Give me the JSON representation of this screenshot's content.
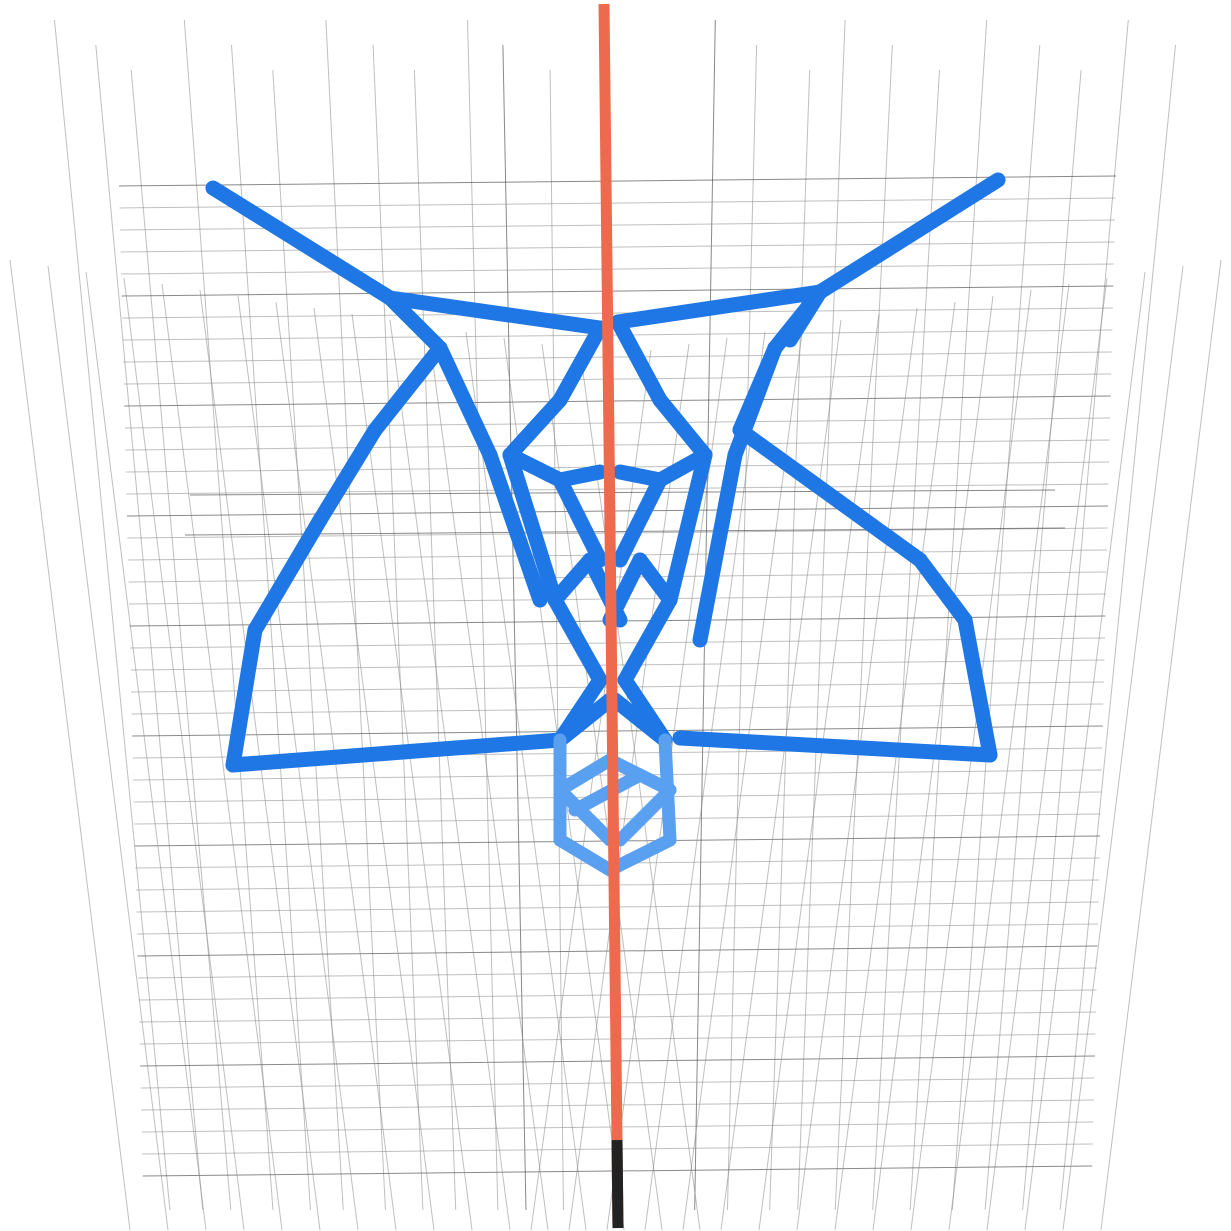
{
  "colors": {
    "background": "#ffffff",
    "grid": "#8a8a8a",
    "grid_dark": "#3a3a3a",
    "structure_blue": "#1f77e6",
    "structure_blue_light": "#5aa0f0",
    "axis_rod": "#ee6a4e",
    "axis_rod_dark": "#222222"
  },
  "icons": {
    "structure": "wireframe-lattice-icon",
    "axis": "vertical-axis-rod-icon"
  }
}
